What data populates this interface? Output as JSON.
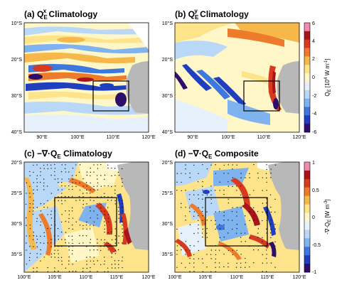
{
  "chart_data": [
    {
      "type": "heatmap",
      "panel_label": "(a)",
      "title_prefix": "Q",
      "title_sub": "E",
      "title_sup": "x",
      "title_suffix": " Climatology",
      "x_ticks": [
        "90°E",
        "100°E",
        "110°E",
        "120°E"
      ],
      "x_values": [
        90,
        100,
        110,
        120
      ],
      "y_ticks": [
        "10°S",
        "20°S",
        "30°S",
        "40°S"
      ],
      "y_values": [
        -10,
        -20,
        -30,
        -40
      ],
      "xlim": [
        85,
        120
      ],
      "ylim": [
        -40,
        -10
      ],
      "box": {
        "lon": [
          105,
          115
        ],
        "lat": [
          -34,
          -26
        ]
      },
      "field": "alternating zonal bands of positive and negative flux, strongest near 20-30°S west of Australia"
    },
    {
      "type": "heatmap",
      "panel_label": "(b)",
      "title_prefix": "Q",
      "title_sub": "E",
      "title_sup": "y",
      "title_suffix": " Climatology",
      "x_ticks": [
        "90°E",
        "100°E",
        "110°E",
        "120°E"
      ],
      "x_values": [
        90,
        100,
        110,
        120
      ],
      "y_ticks": [
        "10°S",
        "20°S",
        "30°S",
        "40°S"
      ],
      "y_values": [
        -10,
        -20,
        -30,
        -40
      ],
      "xlim": [
        85,
        120
      ],
      "ylim": [
        -40,
        -10
      ],
      "box": {
        "lon": [
          105,
          115
        ],
        "lat": [
          -34,
          -26
        ]
      },
      "field": "positive flux in north, negative diagonal bands in southwest, strong positive along coast"
    },
    {
      "type": "heatmap",
      "panel_label": "(c)",
      "title_prefix": "−∇·Q",
      "title_sub": "E",
      "title_sup": "",
      "title_suffix": " Climatology",
      "x_ticks": [
        "100°E",
        "105°E",
        "110°E",
        "115°E",
        "120°E"
      ],
      "x_values": [
        100,
        105,
        110,
        115,
        120
      ],
      "y_ticks": [
        "20°S",
        "25°S",
        "30°S",
        "35°S"
      ],
      "y_values": [
        -20,
        -25,
        -30,
        -35
      ],
      "xlim": [
        100,
        120
      ],
      "ylim": [
        -38,
        -20
      ],
      "box": {
        "lon": [
          105,
          115
        ],
        "lat": [
          -34,
          -26
        ]
      },
      "stippling": true
    },
    {
      "type": "heatmap",
      "panel_label": "(d)",
      "title_prefix": "−∇·Q",
      "title_sub": "E",
      "title_sup": "",
      "title_suffix": " Composite",
      "x_ticks": [
        "100°E",
        "105°E",
        "110°E",
        "115°E",
        "120°E"
      ],
      "x_values": [
        100,
        105,
        110,
        115,
        120
      ],
      "y_ticks": [
        "20°S",
        "25°S",
        "30°S",
        "35°S"
      ],
      "y_values": [
        -20,
        -25,
        -30,
        -35
      ],
      "xlim": [
        100,
        120
      ],
      "ylim": [
        -38,
        -20
      ],
      "box": {
        "lon": [
          105,
          115
        ],
        "lat": [
          -34,
          -26
        ]
      },
      "stippling": true
    }
  ],
  "colorbar_top": {
    "ticks": [
      "6",
      "4",
      "2",
      "0",
      "-2",
      "-4",
      "-6"
    ],
    "values": [
      6,
      4,
      2,
      0,
      -2,
      -4,
      -6
    ],
    "label": "Q",
    "label_sub": "E",
    "label_rest": " [10",
    "label_sup": "4",
    "label_end": " W m",
    "label_sup2": "-1",
    "label_close": "]"
  },
  "colorbar_bottom": {
    "ticks": [
      "1",
      "0.5",
      "0",
      "-0.5",
      "-1"
    ],
    "values": [
      1,
      0.5,
      0,
      -0.5,
      -1
    ],
    "label": "-∇·Q",
    "label_sub": "E",
    "label_rest": " [W m",
    "label_sup": "-3",
    "label_close": "]"
  },
  "colors": {
    "palette": [
      "#2d0f6b",
      "#1f3fbf",
      "#3d78e0",
      "#7fb3f0",
      "#b9d8f7",
      "#e6f1fb",
      "#fff7c8",
      "#fde38a",
      "#f7b84b",
      "#ee7a2c",
      "#d83a20",
      "#a8141c",
      "#f08ab0"
    ],
    "land": "#b8b8b8"
  }
}
